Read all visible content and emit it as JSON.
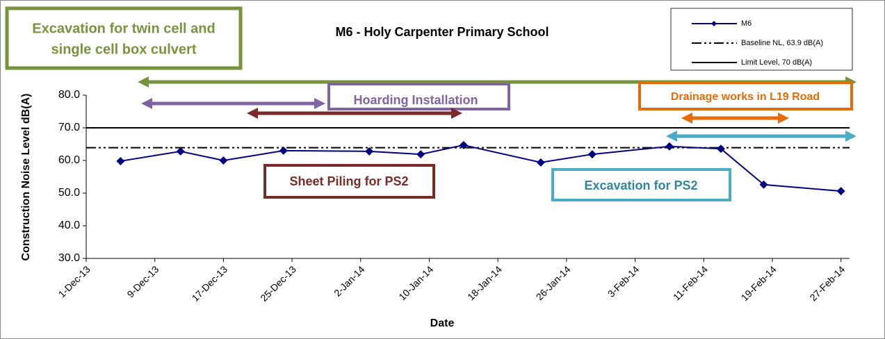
{
  "chart_data": {
    "type": "line",
    "title": "M6 - Holy Carpenter Primary School",
    "x_label": "Date",
    "y_label": "Construction Noise Level  dB(A)",
    "x": [
      "2013-12-05",
      "2013-12-12",
      "2013-12-17",
      "2013-12-24",
      "2014-01-03",
      "2014-01-09",
      "2014-01-14",
      "2014-01-23",
      "2014-01-29",
      "2014-02-07",
      "2014-02-13",
      "2014-02-18",
      "2014-02-27"
    ],
    "series": [
      {
        "name": "M6",
        "color": "#000080",
        "values": [
          59.8,
          62.8,
          60.0,
          63.0,
          62.8,
          61.9,
          64.7,
          59.4,
          61.9,
          64.3,
          63.6,
          52.6,
          50.6
        ]
      }
    ],
    "reference_lines": [
      {
        "name": "Baseline NL, 63.9 dB(A)",
        "value": 63.9,
        "style": "dash-dot",
        "color": "#000000"
      },
      {
        "name": "Limit Level, 70 dB(A)",
        "value": 70,
        "style": "solid",
        "color": "#000000"
      }
    ],
    "xlim": [
      "2013-12-01",
      "2014-02-28"
    ],
    "xticks": [
      {
        "value": "2013-12-01",
        "label": "1-Dec-13"
      },
      {
        "value": "2013-12-09",
        "label": "9-Dec-13"
      },
      {
        "value": "2013-12-17",
        "label": "17-Dec-13"
      },
      {
        "value": "2013-12-25",
        "label": "25-Dec-13"
      },
      {
        "value": "2014-01-02",
        "label": "2-Jan-14"
      },
      {
        "value": "2014-01-10",
        "label": "10-Jan-14"
      },
      {
        "value": "2014-01-18",
        "label": "18-Jan-14"
      },
      {
        "value": "2014-01-26",
        "label": "26-Jan-14"
      },
      {
        "value": "2014-02-03",
        "label": "3-Feb-14"
      },
      {
        "value": "2014-02-11",
        "label": "11-Feb-14"
      },
      {
        "value": "2014-02-19",
        "label": "19-Feb-14"
      },
      {
        "value": "2014-02-27",
        "label": "27-Feb-14"
      }
    ],
    "ylim": [
      30,
      80
    ],
    "yticks": [
      {
        "value": 30,
        "label": "30.0"
      },
      {
        "value": 40,
        "label": "40.0"
      },
      {
        "value": 50,
        "label": "50.0"
      },
      {
        "value": 60,
        "label": "60.0"
      },
      {
        "value": 70,
        "label": "70.0"
      },
      {
        "value": 80,
        "label": "80.0"
      }
    ],
    "grid": false,
    "legend": "top-right",
    "annotations": [
      {
        "lines": [
          "Excavation for twin cell and",
          "single cell box culvert"
        ],
        "color": "#77933c"
      },
      {
        "lines": [
          "Hoarding Installation"
        ],
        "color": "#8064a2"
      },
      {
        "lines": [
          "Sheet Piling for PS2"
        ],
        "color": "#772c2a"
      },
      {
        "lines": [
          "Drainage works in L19 Road"
        ],
        "color": "#e46c0a"
      },
      {
        "lines": [
          "Excavation for PS2"
        ],
        "color": "#4bacc6"
      }
    ]
  }
}
